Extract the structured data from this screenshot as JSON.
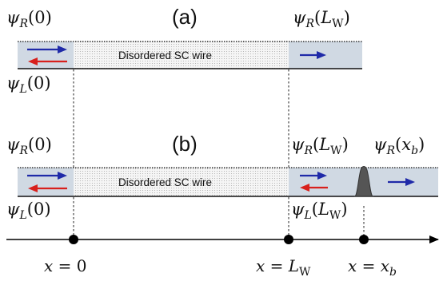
{
  "panel_a": {
    "label": "(a)",
    "wire_label": "Disordered SC wire",
    "psi_R_0": "ψ_R(0)",
    "psi_R_L": "ψ_R(L_W)",
    "psi_L_0": "ψ_L(0)"
  },
  "panel_b": {
    "label": "(b)",
    "wire_label": "Disordered SC wire",
    "psi_R_0": "ψ_R(0)",
    "psi_R_L": "ψ_R(L_W)",
    "psi_R_xb": "ψ_R(x_b)",
    "psi_L_0": "ψ_L(0)",
    "psi_L_L": "ψ_L(L_W)"
  },
  "axis": {
    "tick_0": "x = 0",
    "tick_L": "x = L_W",
    "tick_xb": "x = x_b"
  },
  "colors": {
    "right_mover": "#1f2aa8",
    "left_mover": "#d8201c",
    "lead_fill": "#d0d9e3",
    "wire_fill": "#f3f3f3",
    "barrier_fill": "#555555"
  }
}
